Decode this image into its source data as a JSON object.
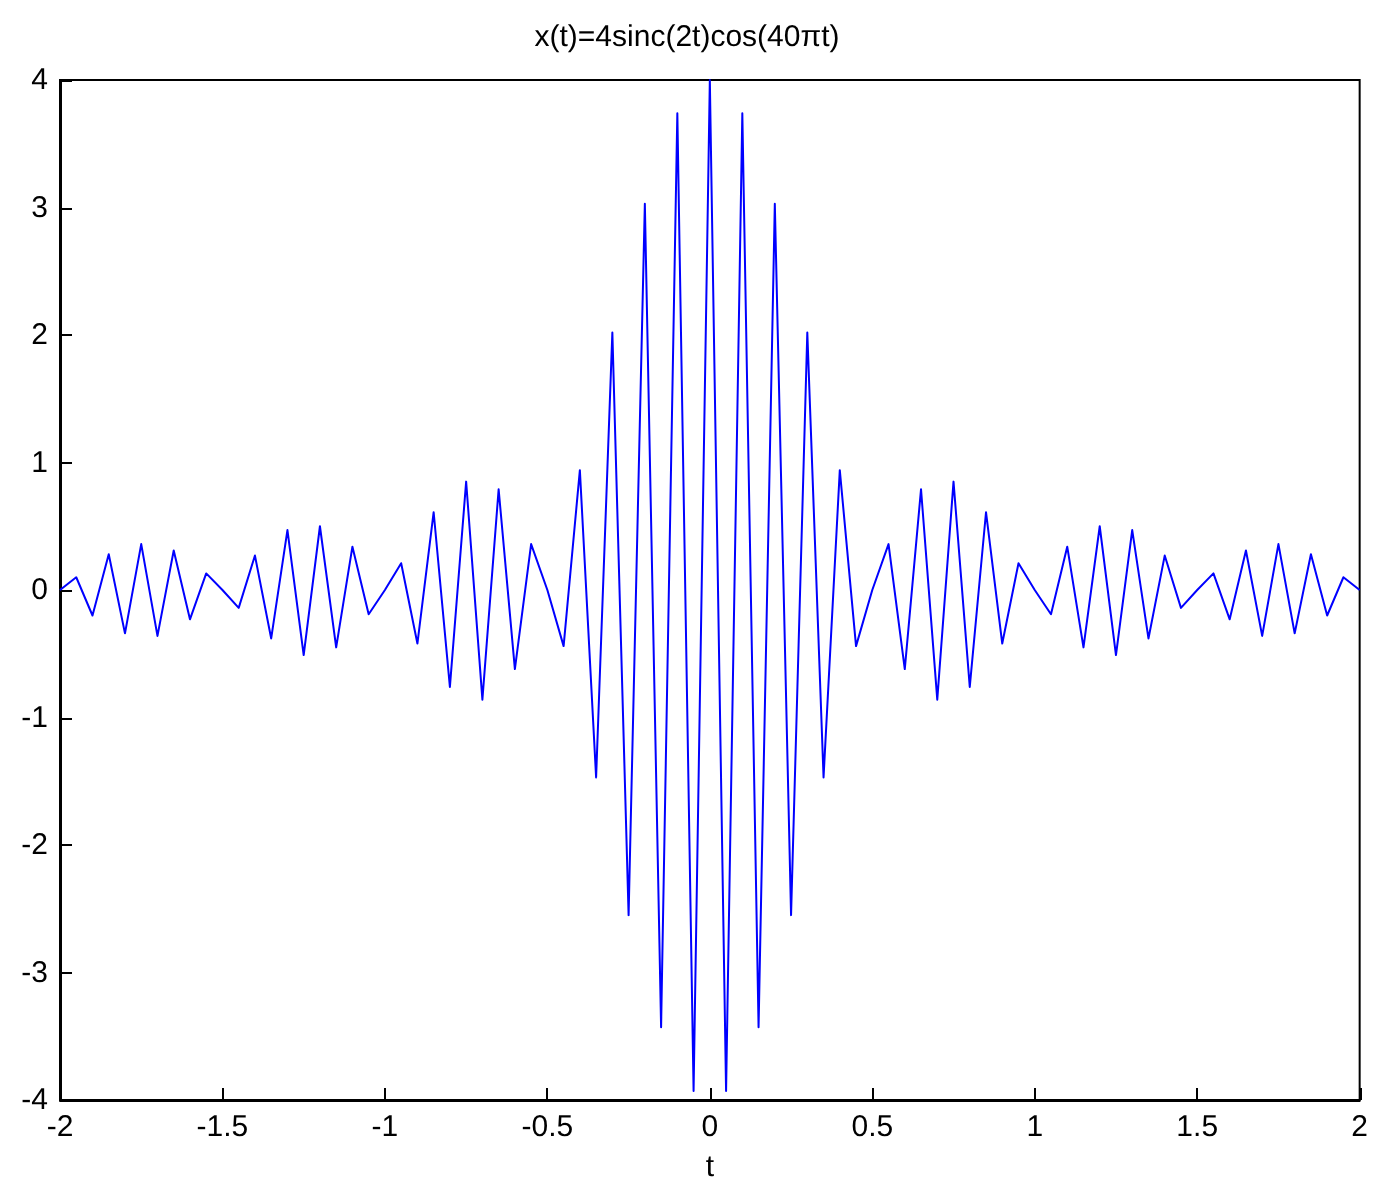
{
  "chart_data": {
    "type": "line",
    "title": "x(t)=4sinc(2t)cos(40πt)",
    "xlabel": "t",
    "x": [
      -2,
      -1.95,
      -1.9,
      -1.85,
      -1.8,
      -1.75,
      -1.7,
      -1.65,
      -1.6,
      -1.55,
      -1.5,
      -1.45,
      -1.4,
      -1.35,
      -1.3,
      -1.25,
      -1.2,
      -1.15,
      -1.1,
      -1.05,
      -1,
      -0.95,
      -0.9,
      -0.85,
      -0.8,
      -0.75,
      -0.7,
      -0.65,
      -0.6,
      -0.55,
      -0.5,
      -0.45,
      -0.4,
      -0.35,
      -0.3,
      -0.25,
      -0.2,
      -0.15,
      -0.1,
      -0.05,
      0,
      0.05,
      0.1,
      0.15,
      0.2,
      0.25,
      0.3,
      0.35,
      0.4,
      0.45,
      0.5,
      0.55,
      0.6,
      0.65,
      0.7,
      0.75,
      0.8,
      0.85,
      0.9,
      0.95,
      1,
      1.05,
      1.1,
      1.15,
      1.2,
      1.25,
      1.3,
      1.35,
      1.4,
      1.45,
      1.5,
      1.55,
      1.6,
      1.65,
      1.7,
      1.75,
      1.8,
      1.85,
      1.9,
      1.95,
      2
    ],
    "series": [
      {
        "color": "#0000ff",
        "values": [
          0,
          0.1,
          -0.2,
          0.28,
          -0.34,
          0.36,
          -0.36,
          0.31,
          -0.23,
          0.13,
          0,
          -0.14,
          0.27,
          -0.38,
          0.47,
          -0.51,
          0.5,
          -0.45,
          0.34,
          -0.19,
          0,
          0.21,
          -0.42,
          0.61,
          -0.76,
          0.85,
          -0.86,
          0.79,
          -0.62,
          0.36,
          0,
          -0.44,
          0.94,
          -1.47,
          2.02,
          -2.55,
          3.03,
          -3.43,
          3.74,
          -3.93,
          4,
          -3.93,
          3.74,
          -3.43,
          3.03,
          -2.55,
          2.02,
          -1.47,
          0.94,
          -0.44,
          0,
          0.36,
          -0.62,
          0.79,
          -0.86,
          0.85,
          -0.76,
          0.61,
          -0.42,
          0.21,
          0,
          -0.19,
          0.34,
          -0.45,
          0.5,
          -0.51,
          0.47,
          -0.38,
          0.27,
          -0.14,
          0,
          0.13,
          -0.23,
          0.31,
          -0.36,
          0.36,
          -0.34,
          0.28,
          -0.2,
          0.1,
          0
        ]
      }
    ],
    "xlim": [
      -2,
      2
    ],
    "xticks": [
      -2,
      -1.5,
      -1,
      -0.5,
      0,
      0.5,
      1,
      1.5,
      2
    ],
    "ylim": [
      -4,
      4
    ],
    "yticks": [
      -4,
      -3,
      -2,
      -1,
      0,
      1,
      2,
      3,
      4
    ],
    "grid": false,
    "marker": "none",
    "line_style": "solid"
  }
}
